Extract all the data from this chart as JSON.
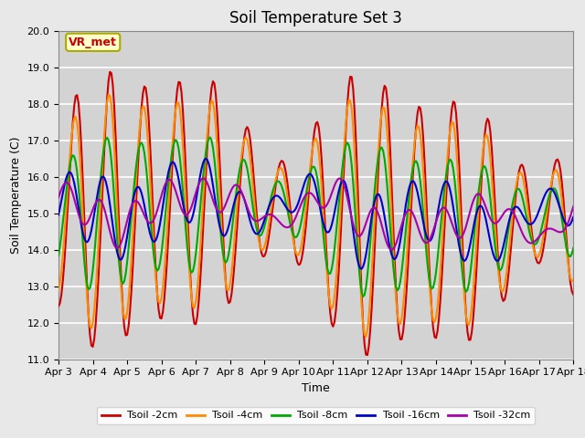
{
  "title": "Soil Temperature Set 3",
  "xlabel": "Time",
  "ylabel": "Soil Temperature (C)",
  "ylim": [
    11.0,
    20.0
  ],
  "yticks": [
    11.0,
    12.0,
    13.0,
    14.0,
    15.0,
    16.0,
    17.0,
    18.0,
    19.0,
    20.0
  ],
  "xtick_labels": [
    "Apr 3",
    "Apr 4",
    "Apr 5",
    "Apr 6",
    "Apr 7",
    "Apr 8",
    "Apr 9",
    "Apr 10",
    "Apr 11",
    "Apr 12",
    "Apr 13",
    "Apr 14",
    "Apr 15",
    "Apr 16",
    "Apr 17",
    "Apr 18"
  ],
  "annotation_text": "VR_met",
  "series_colors": [
    "#cc0000",
    "#ff8c00",
    "#00aa00",
    "#0000cc",
    "#aa00aa"
  ],
  "series_labels": [
    "Tsoil -2cm",
    "Tsoil -4cm",
    "Tsoil -8cm",
    "Tsoil -16cm",
    "Tsoil -32cm"
  ],
  "background_color": "#e8e8e8",
  "plot_bg_color": "#d3d3d3",
  "grid_color": "#ffffff",
  "title_fontsize": 12,
  "axis_label_fontsize": 9,
  "tick_fontsize": 8
}
